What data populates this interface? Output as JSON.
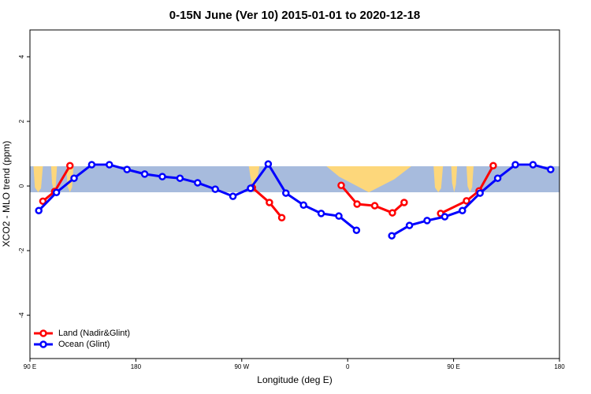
{
  "chart_data": {
    "type": "line",
    "title": "0-15N June (Ver 10)   2015-01-01 to 2020-12-18",
    "x_label": "Longitude (deg E)",
    "y_label": "XCO2 - MLO trend (ppm)",
    "xlim": [
      90,
      540
    ],
    "ylim": [
      -5.34,
      4.83
    ],
    "xticks": [
      {
        "value": 90,
        "label": "90 E"
      },
      {
        "value": 180,
        "label": "180"
      },
      {
        "value": 270,
        "label": "90 W"
      },
      {
        "value": 360,
        "label": "0"
      },
      {
        "value": 450,
        "label": "90 E"
      },
      {
        "value": 540,
        "label": "180"
      }
    ],
    "yticks": [
      -4,
      -2,
      0,
      2,
      4
    ],
    "legend_position": "bottom-left",
    "series": [
      {
        "name": "Land (Nadir&Glint)",
        "color": "#ff0000",
        "x": [
          101,
          111,
          124,
          null,
          279,
          293.5,
          304,
          null,
          354.5,
          368,
          383,
          398,
          408,
          null,
          439,
          461,
          471.7,
          483.7
        ],
        "values": [
          -0.47,
          -0.17,
          0.63,
          null,
          -0.05,
          -0.51,
          -0.98,
          null,
          0.02,
          -0.56,
          -0.61,
          -0.83,
          -0.51,
          null,
          -0.85,
          -0.46,
          -0.15,
          0.63
        ]
      },
      {
        "name": "Ocean (Glint)",
        "color": "#0000ff",
        "x": [
          97.5,
          112.5,
          127.5,
          142.5,
          157.5,
          172.5,
          187.5,
          202.5,
          217.5,
          232.5,
          247.5,
          262.5,
          277.5,
          292.5,
          307.5,
          322.5,
          337.5,
          352.5,
          367.5,
          382.5,
          397.5,
          412.5,
          427.5,
          442.5,
          457.5,
          472.5,
          487.5,
          502.5,
          517.5,
          532.5
        ],
        "values": [
          -0.76,
          -0.2,
          0.24,
          0.66,
          0.66,
          0.51,
          0.37,
          0.29,
          0.24,
          0.1,
          -0.1,
          -0.32,
          -0.07,
          0.68,
          -0.22,
          -0.59,
          -0.85,
          -0.93,
          -1.37,
          null,
          -1.54,
          -1.22,
          -1.07,
          -0.95,
          -0.76,
          -0.22,
          0.24,
          0.66,
          0.66,
          0.51
        ]
      }
    ]
  }
}
